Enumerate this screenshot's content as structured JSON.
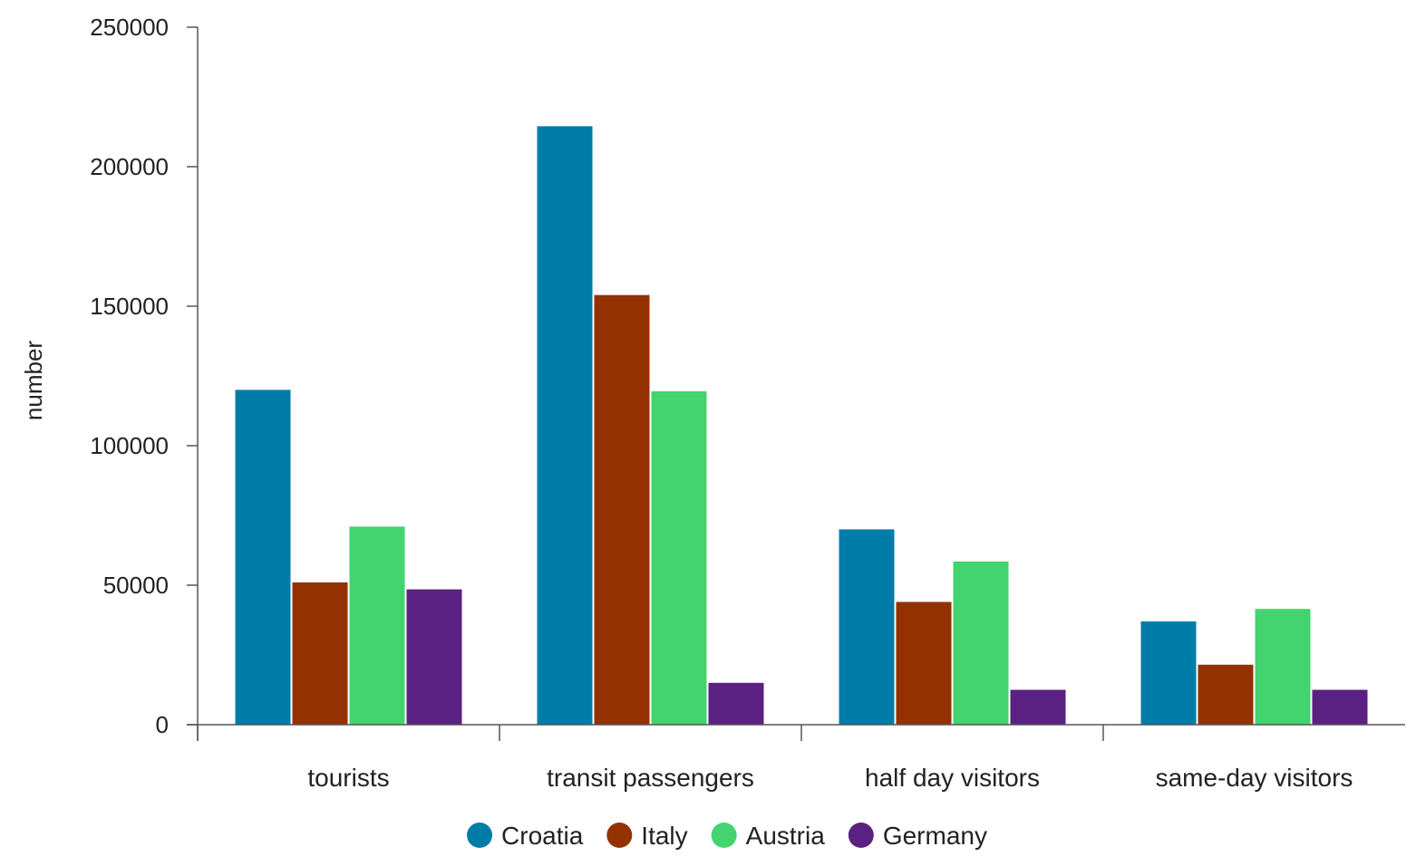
{
  "chart_data": {
    "type": "bar",
    "title": "",
    "xlabel": "",
    "ylabel": "number",
    "ylim": [
      0,
      250000
    ],
    "yticks": [
      0,
      50000,
      100000,
      150000,
      200000,
      250000
    ],
    "grid": false,
    "legend_position": "bottom",
    "categories": [
      "tourists",
      "transit passengers",
      "half day visitors",
      "same-day visitors"
    ],
    "series": [
      {
        "name": "Croatia",
        "color": "#007ca8",
        "values": [
          120000,
          214500,
          70000,
          37000
        ]
      },
      {
        "name": "Italy",
        "color": "#943100",
        "values": [
          51000,
          154000,
          44000,
          21500
        ]
      },
      {
        "name": "Austria",
        "color": "#43d36f",
        "values": [
          71000,
          119500,
          58500,
          41500
        ]
      },
      {
        "name": "Germany",
        "color": "#5a2182",
        "values": [
          48500,
          15000,
          12500,
          12500
        ]
      }
    ]
  }
}
